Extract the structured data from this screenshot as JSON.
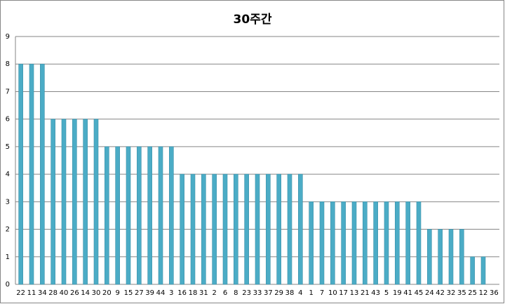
{
  "chart_data": {
    "type": "bar",
    "title": "30주간",
    "categories": [
      "22",
      "11",
      "34",
      "28",
      "40",
      "26",
      "14",
      "30",
      "20",
      "9",
      "15",
      "27",
      "39",
      "44",
      "3",
      "16",
      "18",
      "31",
      "2",
      "6",
      "8",
      "23",
      "33",
      "37",
      "29",
      "38",
      "4",
      "1",
      "7",
      "10",
      "17",
      "13",
      "21",
      "43",
      "5",
      "19",
      "41",
      "45",
      "24",
      "42",
      "32",
      "35",
      "25",
      "12",
      "36"
    ],
    "values": [
      8,
      8,
      8,
      6,
      6,
      6,
      6,
      6,
      5,
      5,
      5,
      5,
      5,
      5,
      5,
      4,
      4,
      4,
      4,
      4,
      4,
      4,
      4,
      4,
      4,
      4,
      4,
      3,
      3,
      3,
      3,
      3,
      3,
      3,
      3,
      3,
      3,
      3,
      2,
      2,
      2,
      2,
      1,
      1,
      0
    ],
    "color": "#4bacc6",
    "ylim": [
      0,
      9
    ],
    "yticks": [
      0,
      1,
      2,
      3,
      4,
      5,
      6,
      7,
      8,
      9
    ],
    "grid": true
  }
}
